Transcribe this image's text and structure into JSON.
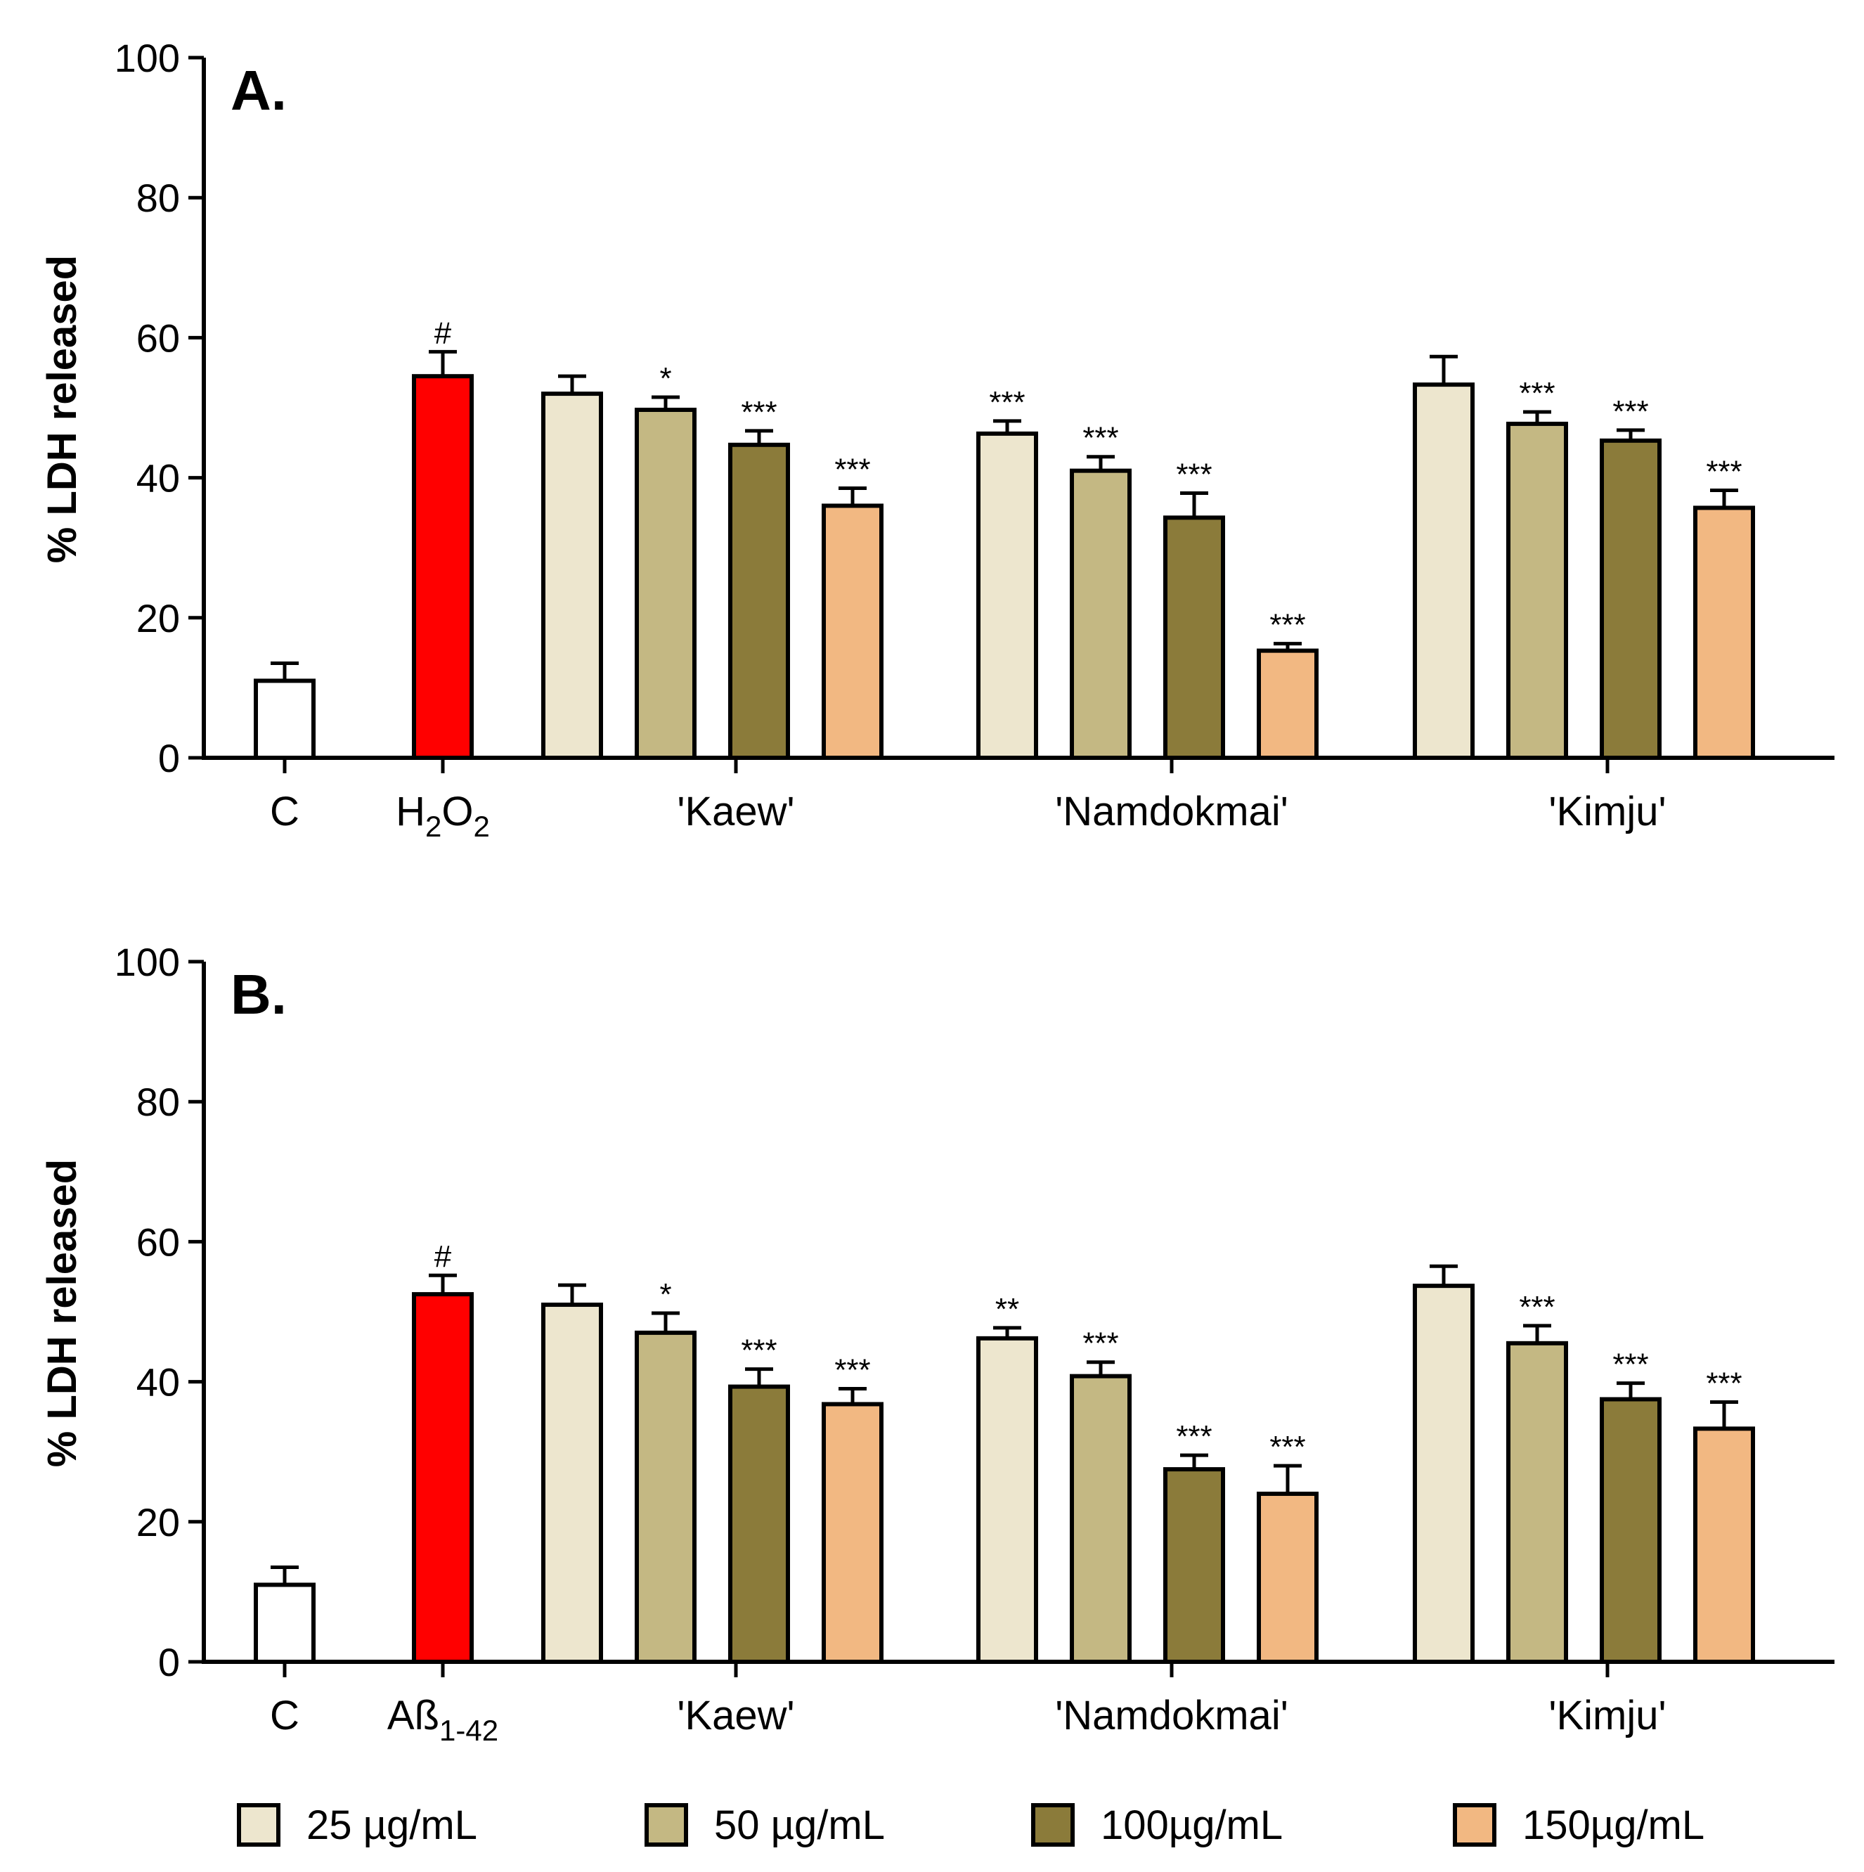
{
  "chart_data": [
    {
      "type": "bar",
      "panel_label": "A.",
      "ylabel": "% LDH released",
      "ylim": [
        0,
        100
      ],
      "yticks": [
        "0",
        "20",
        "40",
        "60",
        "80",
        "100"
      ],
      "groups": [
        {
          "label": "C",
          "sub": "",
          "tail": ""
        },
        {
          "label": "H",
          "sub": "2",
          "tail": "O",
          "sub2": "2"
        },
        {
          "label": "'Kaew'"
        },
        {
          "label": "'Namdokmai'"
        },
        {
          "label": "'Kimju'"
        }
      ],
      "controls": [
        {
          "name": "C",
          "value": 11,
          "error": 2.5,
          "color": "#FFFFFF",
          "sig": ""
        },
        {
          "name": "H2O2",
          "value": 54.5,
          "error": 3.5,
          "color": "#FF0000",
          "sig": "#"
        }
      ],
      "series": [
        {
          "name": "25 µg/mL",
          "color": "#EDE6CE",
          "values": [
            52,
            46.3,
            53.3
          ],
          "errors": [
            2.5,
            1.8,
            4
          ],
          "sig": [
            "",
            "***",
            ""
          ]
        },
        {
          "name": "50 µg/mL",
          "color": "#C4B883",
          "values": [
            49.7,
            41,
            47.7
          ],
          "errors": [
            1.8,
            2,
            1.7
          ],
          "sig": [
            "*",
            "***",
            "***"
          ]
        },
        {
          "name": "100µg/mL",
          "color": "#8B7B3A",
          "values": [
            44.7,
            34.3,
            45.3
          ],
          "errors": [
            2,
            3.5,
            1.5
          ],
          "sig": [
            "***",
            "***",
            "***"
          ]
        },
        {
          "name": "150µg/mL",
          "color": "#F2B882",
          "values": [
            36,
            15.3,
            35.7
          ],
          "errors": [
            2.5,
            1,
            2.5
          ],
          "sig": [
            "***",
            "***",
            "***"
          ]
        }
      ]
    },
    {
      "type": "bar",
      "panel_label": "B.",
      "ylabel": "% LDH released",
      "ylim": [
        0,
        100
      ],
      "yticks": [
        "0",
        "20",
        "40",
        "60",
        "80",
        "100"
      ],
      "groups": [
        {
          "label": "C",
          "sub": "",
          "tail": ""
        },
        {
          "label": "Aß",
          "sub": "1-42",
          "tail": ""
        },
        {
          "label": "'Kaew'"
        },
        {
          "label": "'Namdokmai'"
        },
        {
          "label": "'Kimju'"
        }
      ],
      "controls": [
        {
          "name": "C",
          "value": 11,
          "error": 2.5,
          "color": "#FFFFFF",
          "sig": ""
        },
        {
          "name": "Aß1-42",
          "value": 52.5,
          "error": 2.7,
          "color": "#FF0000",
          "sig": "#"
        }
      ],
      "series": [
        {
          "name": "25 µg/mL",
          "color": "#EDE6CE",
          "values": [
            51,
            46.2,
            53.7
          ],
          "errors": [
            2.8,
            1.5,
            2.8
          ],
          "sig": [
            "",
            "**",
            ""
          ]
        },
        {
          "name": "50 µg/mL",
          "color": "#C4B883",
          "values": [
            47,
            40.8,
            45.5
          ],
          "errors": [
            2.8,
            2,
            2.5
          ],
          "sig": [
            "*",
            "***",
            "***"
          ]
        },
        {
          "name": "100µg/mL",
          "color": "#8B7B3A",
          "values": [
            39.3,
            27.5,
            37.5
          ],
          "errors": [
            2.5,
            2,
            2.3
          ],
          "sig": [
            "***",
            "***",
            "***"
          ]
        },
        {
          "name": "150µg/mL",
          "color": "#F2B882",
          "values": [
            36.8,
            24,
            33.3
          ],
          "errors": [
            2.2,
            4,
            3.8
          ],
          "sig": [
            "***",
            "***",
            "***"
          ]
        }
      ]
    }
  ],
  "legend": [
    {
      "label": "25 µg/mL",
      "color": "#EDE6CE"
    },
    {
      "label": "50 µg/mL",
      "color": "#C4B883"
    },
    {
      "label": "100µg/mL",
      "color": "#8B7B3A"
    },
    {
      "label": "150µg/mL",
      "color": "#F2B882"
    }
  ]
}
